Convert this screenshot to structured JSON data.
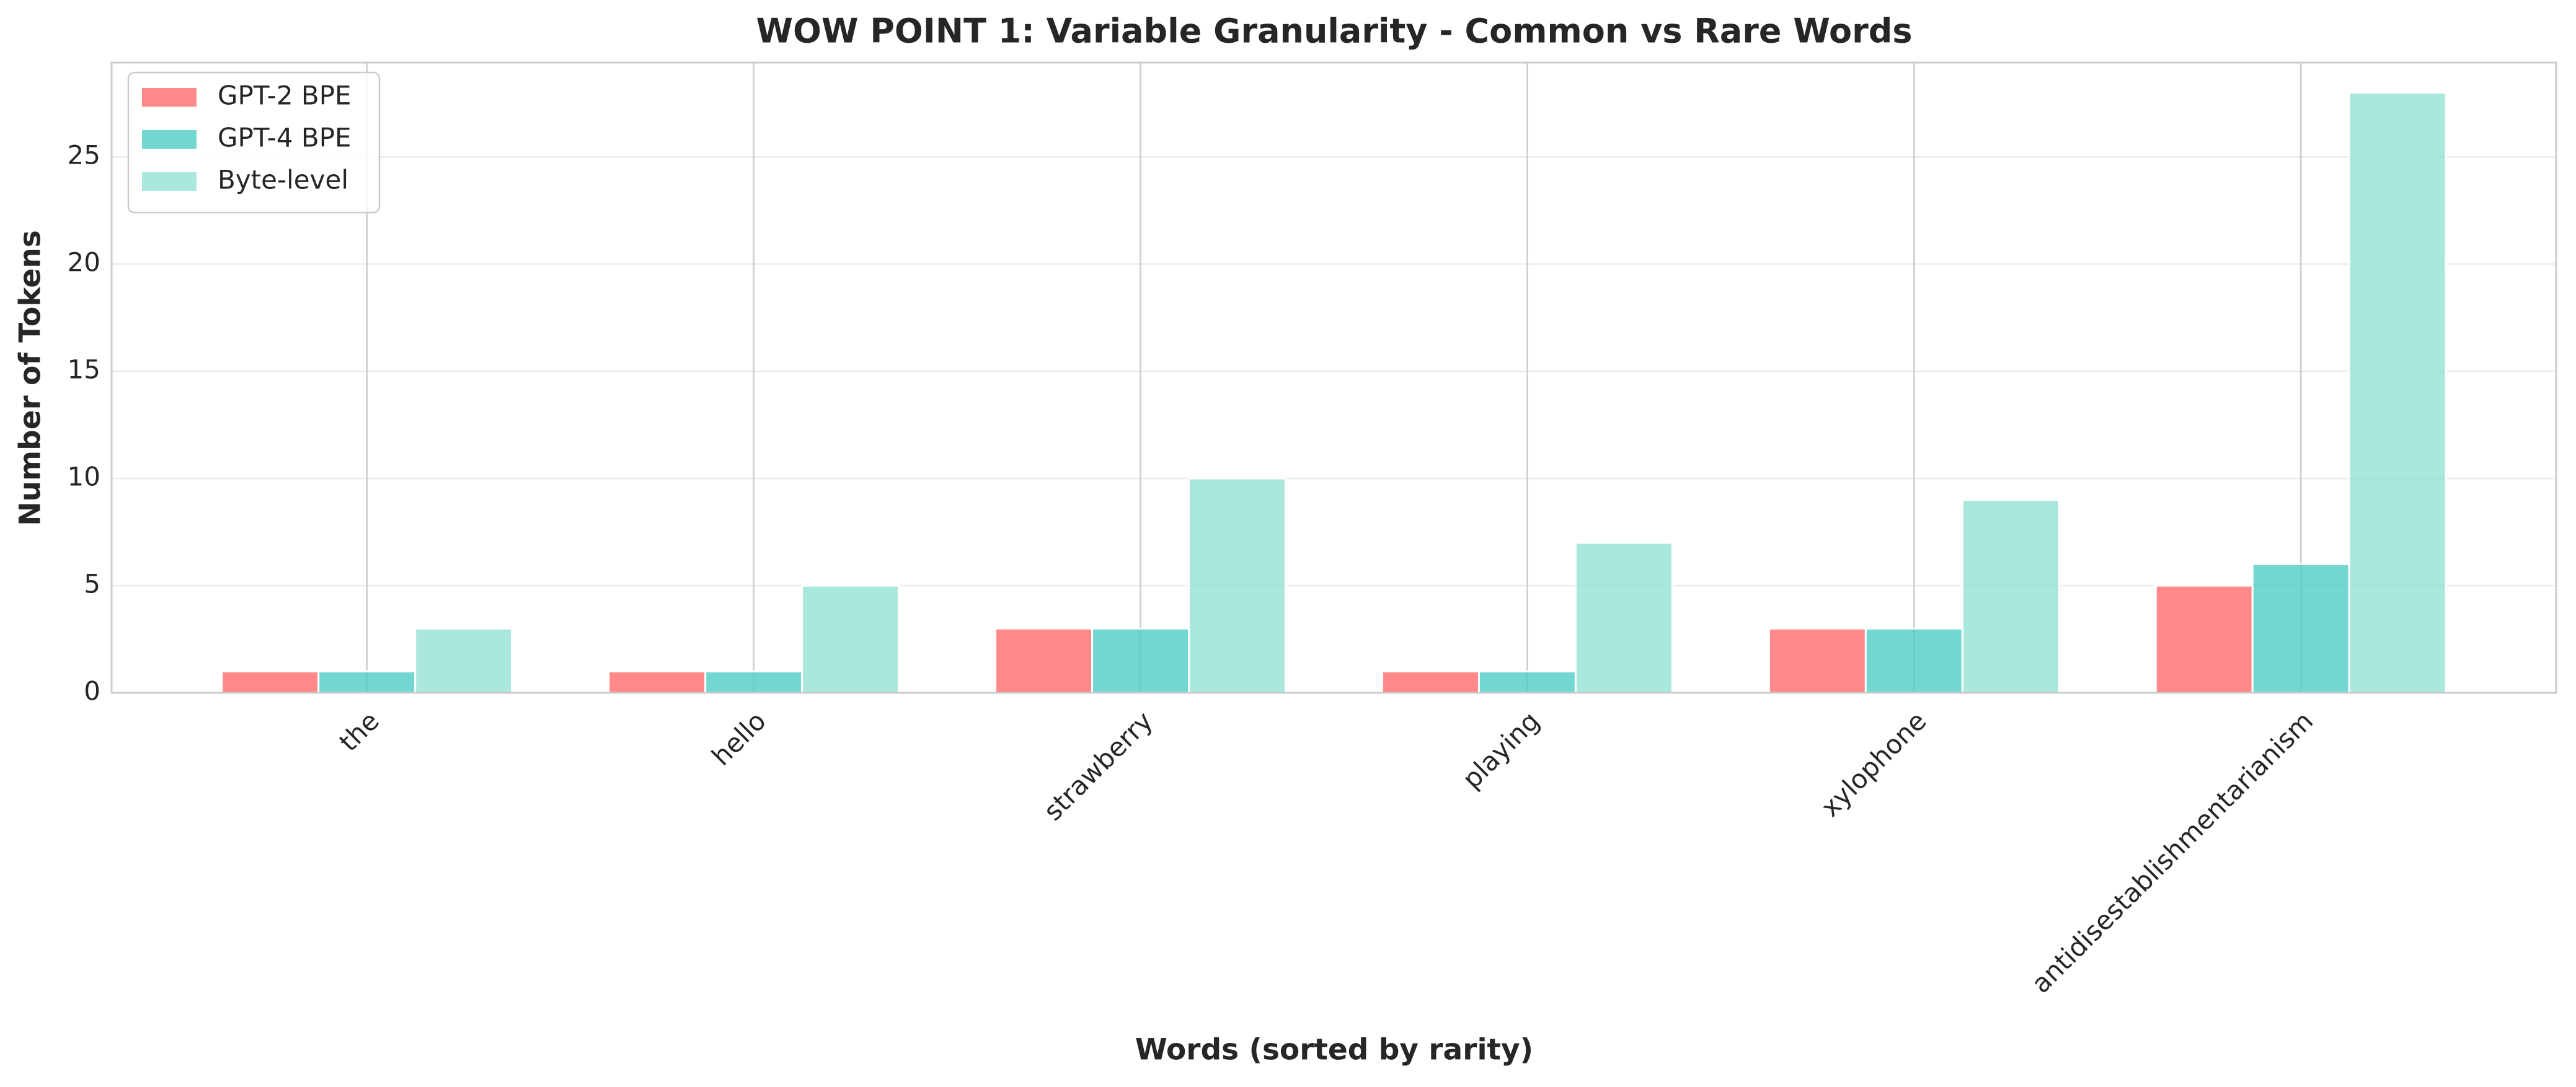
{
  "chart_data": {
    "type": "bar",
    "title": "WOW POINT 1: Variable Granularity - Common vs Rare Words",
    "x_label": "Words (sorted by rarity)",
    "y_label": "Number of Tokens",
    "categories": [
      "the",
      "hello",
      "strawberry",
      "playing",
      "xylophone",
      "antidisestablishmentarianism"
    ],
    "series": [
      {
        "name": "GPT-2 BPE",
        "color": "#FF6B6B",
        "values": [
          1,
          1,
          3,
          1,
          3,
          5
        ]
      },
      {
        "name": "GPT-4 BPE",
        "color": "#4ECDC4",
        "values": [
          1,
          1,
          3,
          1,
          3,
          6
        ]
      },
      {
        "name": "Byte-level",
        "color": "#95E1D3",
        "values": [
          3,
          5,
          10,
          7,
          9,
          28
        ]
      }
    ],
    "ylim": [
      0,
      29.4
    ],
    "yticks": [
      0,
      5,
      10,
      15,
      20,
      25
    ],
    "grid": true,
    "legend": "upper left"
  }
}
